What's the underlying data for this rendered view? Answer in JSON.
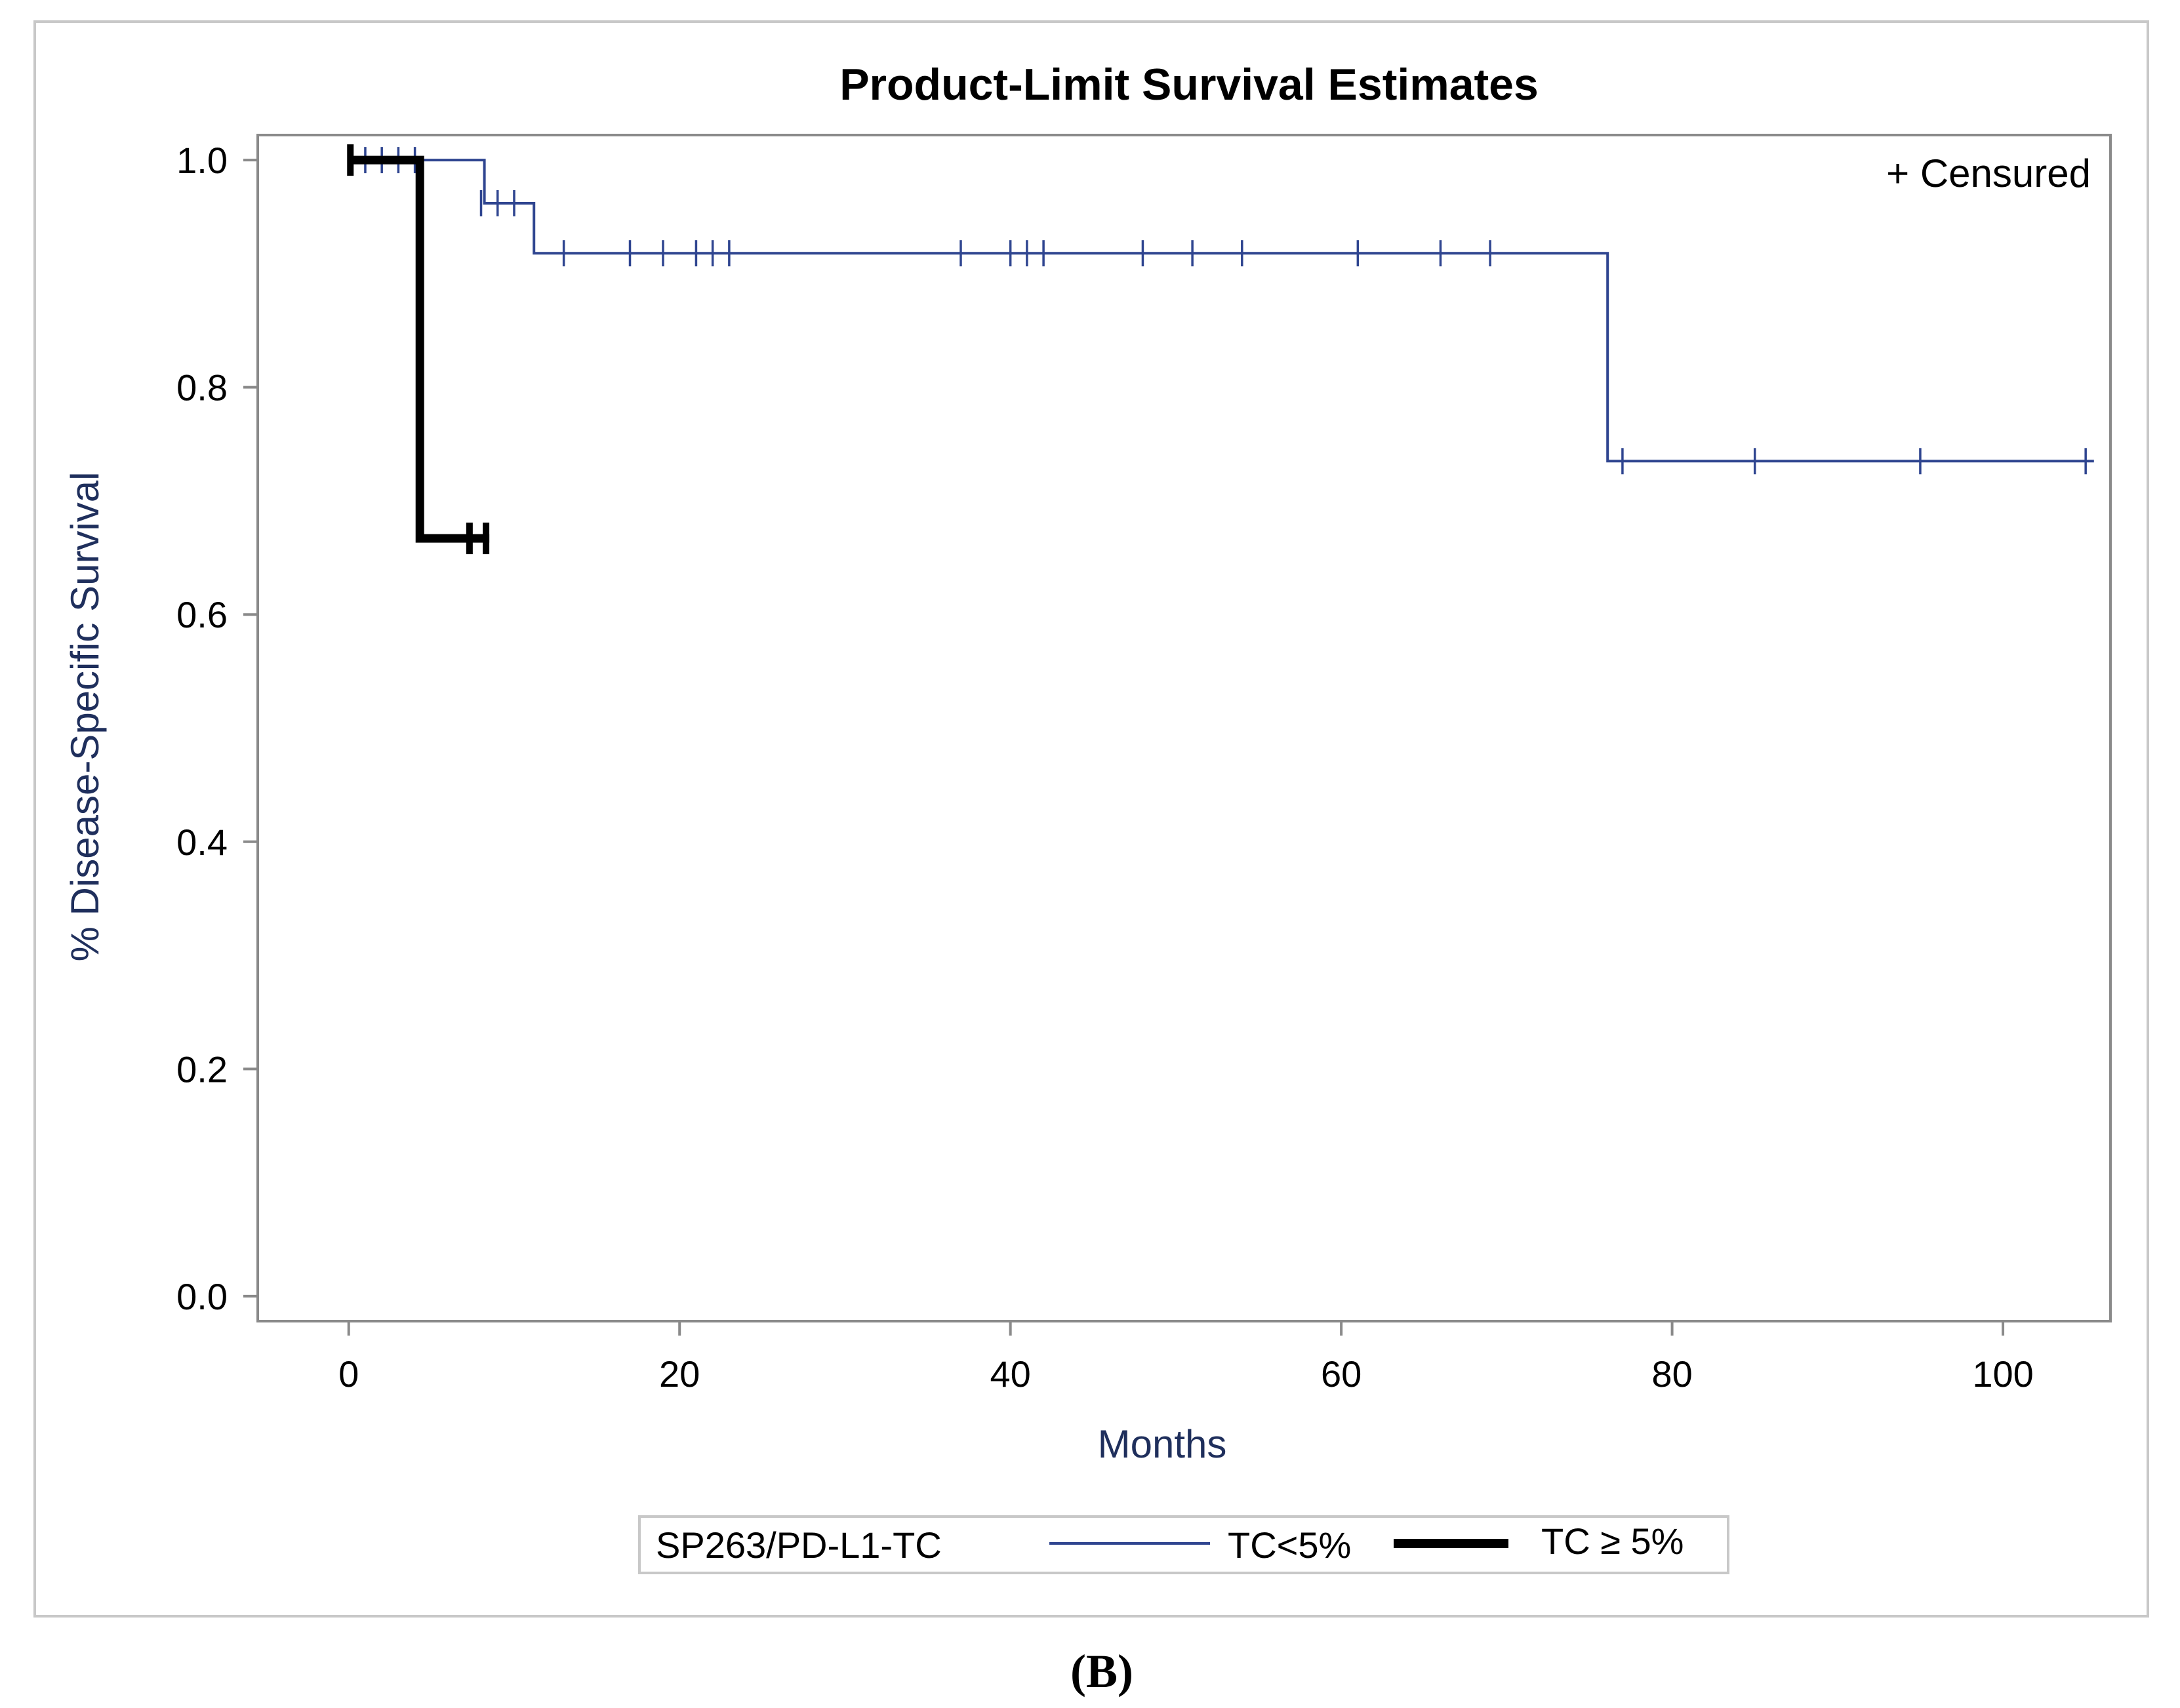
{
  "chart_data": {
    "type": "line",
    "subtype": "kaplan-meier-step",
    "title": "Product-Limit Survival Estimates",
    "xlabel": "Months",
    "ylabel": "% Disease-Specific Survival",
    "xlim": [
      -5.5,
      106.5
    ],
    "ylim": [
      -0.022,
      1.022
    ],
    "xticks": [
      0,
      20,
      40,
      60,
      80,
      100
    ],
    "xtick_labels": [
      "0",
      "20",
      "40",
      "60",
      "80",
      "100"
    ],
    "yticks": [
      0.0,
      0.2,
      0.4,
      0.6,
      0.8,
      1.0
    ],
    "ytick_labels": [
      "0.0",
      "0.2",
      "0.4",
      "0.6",
      "0.8",
      "1.0"
    ],
    "grid": false,
    "censored_note": "+ Censured",
    "legend": {
      "title": "SP263/PD-L1-TC",
      "position": "bottom",
      "entries": [
        "TC<5%",
        "TC ≥ 5%"
      ]
    },
    "series": [
      {
        "name": "TC<5%",
        "color": "#2f4590",
        "line_weight": "thin",
        "steps": [
          [
            0,
            1.0
          ],
          [
            8.2,
            1.0
          ],
          [
            8.2,
            0.962
          ],
          [
            11.2,
            0.962
          ],
          [
            11.2,
            0.918
          ],
          [
            76.1,
            0.918
          ],
          [
            76.1,
            0.735
          ],
          [
            105.5,
            0.735
          ]
        ],
        "censored": [
          [
            1,
            1.0
          ],
          [
            2,
            1.0
          ],
          [
            3,
            1.0
          ],
          [
            4,
            1.0
          ],
          [
            8,
            0.962
          ],
          [
            9,
            0.962
          ],
          [
            10,
            0.962
          ],
          [
            13,
            0.918
          ],
          [
            17,
            0.918
          ],
          [
            19,
            0.918
          ],
          [
            21,
            0.918
          ],
          [
            22,
            0.918
          ],
          [
            23,
            0.918
          ],
          [
            37,
            0.918
          ],
          [
            40,
            0.918
          ],
          [
            41,
            0.918
          ],
          [
            42,
            0.918
          ],
          [
            48,
            0.918
          ],
          [
            51,
            0.918
          ],
          [
            54,
            0.918
          ],
          [
            61,
            0.918
          ],
          [
            66,
            0.918
          ],
          [
            69,
            0.918
          ],
          [
            77,
            0.735
          ],
          [
            85,
            0.735
          ],
          [
            95,
            0.735
          ],
          [
            105,
            0.735
          ]
        ]
      },
      {
        "name": "TC ≥ 5%",
        "color": "#000000",
        "line_weight": "thick",
        "steps": [
          [
            0,
            1.0
          ],
          [
            4.3,
            1.0
          ],
          [
            4.3,
            0.667
          ],
          [
            8.5,
            0.667
          ]
        ],
        "censored": [
          [
            0.1,
            1.0
          ],
          [
            7.3,
            0.667
          ],
          [
            8.3,
            0.667
          ]
        ]
      }
    ]
  },
  "caption": "(B)"
}
